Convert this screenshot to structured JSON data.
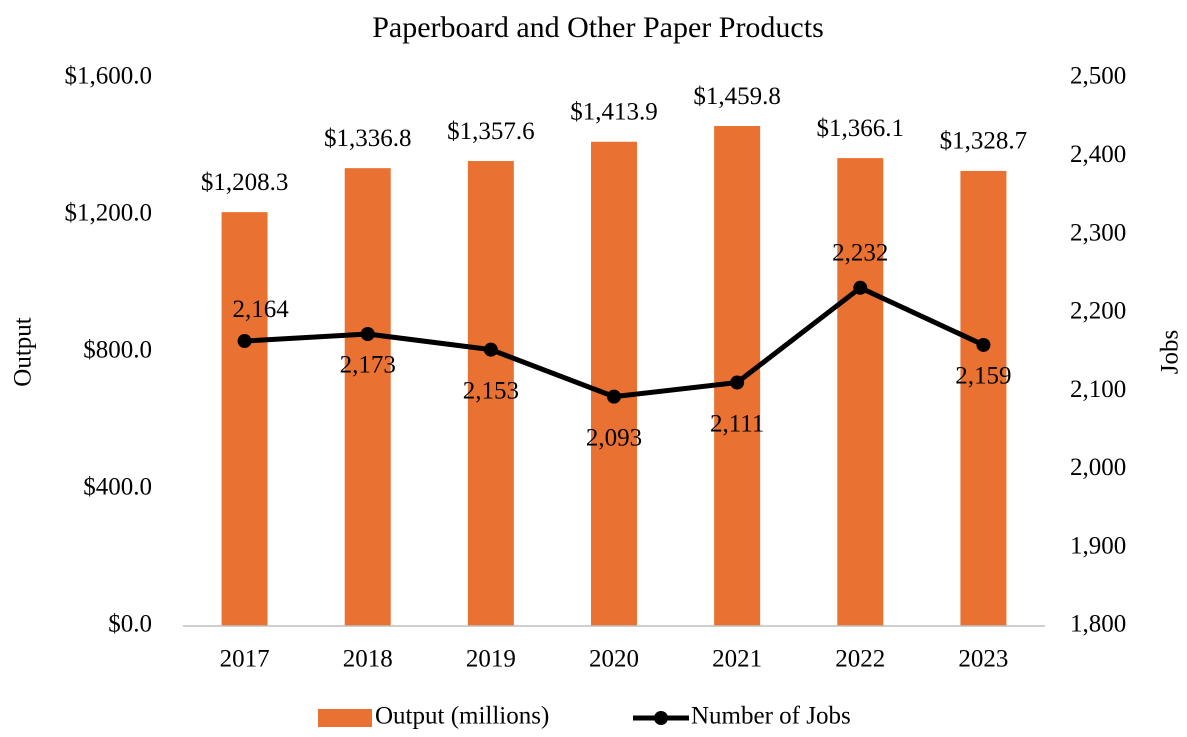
{
  "chart_data": {
    "type": "bar_line",
    "title": "Paperboard and Other Paper Products",
    "y_label": "Output",
    "y2_label": "Jobs",
    "categories": [
      "2017",
      "2018",
      "2019",
      "2020",
      "2021",
      "2022",
      "2023"
    ],
    "series": [
      {
        "name": "Output (millions)",
        "type": "bar",
        "color": "#E97132",
        "values": [
          1208.3,
          1336.8,
          1357.6,
          1413.9,
          1459.8,
          1366.1,
          1328.7
        ],
        "value_labels": [
          "$1,208.3",
          "$1,336.8",
          "$1,357.6",
          "$1,413.9",
          "$1,459.8",
          "$1,366.1",
          "$1,328.7"
        ]
      },
      {
        "name": "Number of Jobs",
        "type": "line",
        "color": "#000000",
        "axis": "y2",
        "values": [
          2164,
          2173,
          2153,
          2093,
          2111,
          2232,
          2159
        ],
        "value_labels": [
          "2,164",
          "2,173",
          "2,153",
          "2,093",
          "2,111",
          "2,232",
          "2,159"
        ]
      }
    ],
    "ylim": [
      0,
      1600
    ],
    "yticks": [
      {
        "value": 0,
        "label": "$0.0"
      },
      {
        "value": 400,
        "label": "$400.0"
      },
      {
        "value": 800,
        "label": "$800.0"
      },
      {
        "value": 1200,
        "label": "$1,200.0"
      },
      {
        "value": 1600,
        "label": "$1,600.0"
      }
    ],
    "y2lim": [
      1800,
      2500
    ],
    "y2ticks": [
      {
        "value": 1800,
        "label": "1,800"
      },
      {
        "value": 1900,
        "label": "1,900"
      },
      {
        "value": 2000,
        "label": "2,000"
      },
      {
        "value": 2100,
        "label": "2,100"
      },
      {
        "value": 2200,
        "label": "2,200"
      },
      {
        "value": 2300,
        "label": "2,300"
      },
      {
        "value": 2400,
        "label": "2,400"
      },
      {
        "value": 2500,
        "label": "2,500"
      }
    ],
    "legend": "bottom"
  }
}
